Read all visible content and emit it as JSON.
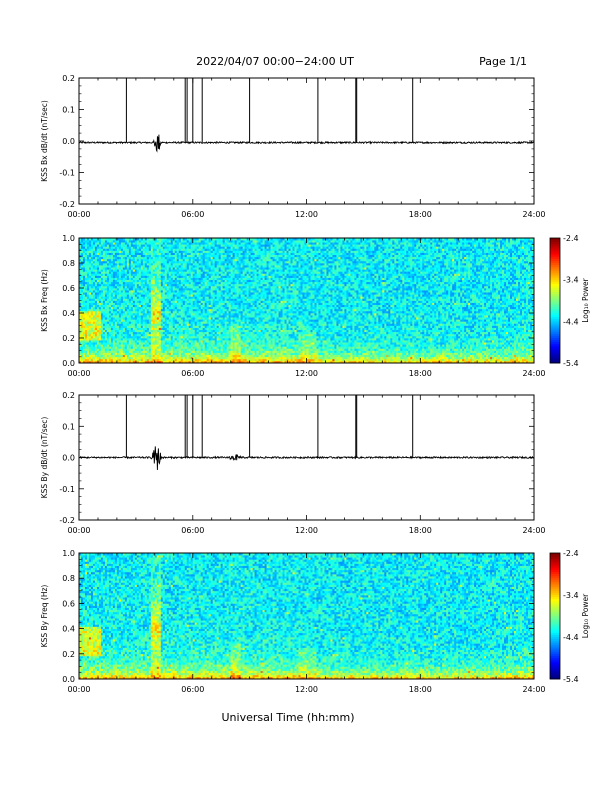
{
  "header": {
    "title": "2022/04/07  00:00−24:00 UT",
    "page": "Page 1/1"
  },
  "xaxis_label": "Universal Time (hh:mm)",
  "colorbar_label": "Log₁₀ Power",
  "chart_data": [
    {
      "type": "line",
      "ylabel": "KSS Bx dB/dt (nT/sec)",
      "xlim": [
        0,
        24
      ],
      "ylim": [
        -0.2,
        0.2
      ],
      "xticks": [
        "00:00",
        "06:00",
        "12:00",
        "18:00",
        "24:00"
      ],
      "yticks": [
        "-0.2",
        "-0.1",
        "0.0",
        "0.1",
        "0.2"
      ],
      "series": [
        {
          "baseline": -0.005,
          "spikes_hours": [
            2.5,
            5.6,
            5.7,
            6.0,
            6.5,
            9.0,
            12.6,
            14.6,
            14.65,
            17.6
          ],
          "bursts": [
            {
              "x": [
                3.9,
                4.4
              ],
              "amplitude": 0.04
            }
          ]
        }
      ]
    },
    {
      "type": "heatmap",
      "ylabel": "KSS Bx Freq (Hz)",
      "xlim": [
        0,
        24
      ],
      "ylim": [
        0.0,
        1.0
      ],
      "xticks": [
        "00:00",
        "06:00",
        "12:00",
        "18:00",
        "24:00"
      ],
      "yticks": [
        "0.0",
        "0.2",
        "0.4",
        "0.6",
        "0.8",
        "1.0"
      ],
      "colorbar": {
        "min": -5.4,
        "max": -2.4,
        "ticks": [
          "-2.4",
          "-3.4",
          "-4.4",
          "-5.4"
        ]
      }
    },
    {
      "type": "line",
      "ylabel": "KSS By dB/dt (nT/sec)",
      "xlim": [
        0,
        24
      ],
      "ylim": [
        -0.2,
        0.2
      ],
      "xticks": [
        "00:00",
        "06:00",
        "12:00",
        "18:00",
        "24:00"
      ],
      "yticks": [
        "-0.2",
        "-0.1",
        "0.0",
        "0.1",
        "0.2"
      ],
      "series": [
        {
          "baseline": 0.0,
          "spikes_hours": [
            2.5,
            5.6,
            5.7,
            6.0,
            6.5,
            9.0,
            12.6,
            14.6,
            14.65,
            17.6
          ],
          "bursts": [
            {
              "x": [
                3.8,
                4.4
              ],
              "amplitude": 0.05
            },
            {
              "x": [
                7.8,
                8.6
              ],
              "amplitude": 0.012
            }
          ]
        }
      ]
    },
    {
      "type": "heatmap",
      "ylabel": "KSS By Freq (Hz)",
      "xlim": [
        0,
        24
      ],
      "ylim": [
        0.0,
        1.0
      ],
      "xticks": [
        "00:00",
        "06:00",
        "12:00",
        "18:00",
        "24:00"
      ],
      "yticks": [
        "0.0",
        "0.2",
        "0.4",
        "0.6",
        "0.8",
        "1.0"
      ],
      "colorbar": {
        "min": -5.4,
        "max": -2.4,
        "ticks": [
          "-2.4",
          "-3.4",
          "-4.4",
          "-5.4"
        ]
      }
    }
  ]
}
